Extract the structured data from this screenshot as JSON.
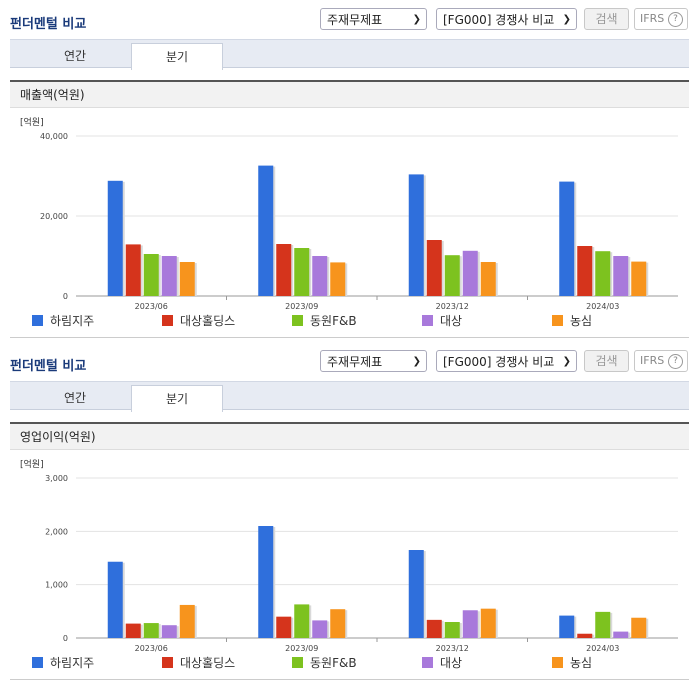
{
  "panels": [
    {
      "title": "펀더멘털 비교",
      "select1": "주재무제표",
      "select2": "[FG000] 경쟁사 비교",
      "search_label": "검색",
      "ifrs_label": "IFRS",
      "help_glyph": "?",
      "tabs": [
        "연간",
        "분기"
      ],
      "active_tab": "분기",
      "subheader": "매출액(억원)",
      "unit_label": "[억원]",
      "chart_data": {
        "type": "bar",
        "title": "매출액(억원)",
        "categories": [
          "2023/06",
          "2023/09",
          "2023/12",
          "2024/03"
        ],
        "ylim": [
          0,
          40000
        ],
        "yticks": [
          "0",
          "20,000",
          "40,000"
        ],
        "ytick_values": [
          0,
          20000,
          40000
        ],
        "grid": true,
        "legend_position": "bottom",
        "series": [
          {
            "name": "하림지주",
            "color": "#2f6fdc",
            "values": [
              28800,
              32600,
              30400,
              28600
            ]
          },
          {
            "name": "대상홀딩스",
            "color": "#d5341c",
            "values": [
              12900,
              13000,
              14000,
              12500
            ]
          },
          {
            "name": "동원F&B",
            "color": "#7dc21f",
            "values": [
              10500,
              12000,
              10200,
              11200
            ]
          },
          {
            "name": "대상",
            "color": "#a879db",
            "values": [
              10000,
              10000,
              11300,
              10000
            ]
          },
          {
            "name": "농심",
            "color": "#f7941d",
            "values": [
              8500,
              8400,
              8500,
              8600
            ]
          }
        ]
      }
    },
    {
      "title": "펀더멘털 비교",
      "select1": "주재무제표",
      "select2": "[FG000] 경쟁사 비교",
      "search_label": "검색",
      "ifrs_label": "IFRS",
      "help_glyph": "?",
      "tabs": [
        "연간",
        "분기"
      ],
      "active_tab": "분기",
      "subheader": "영업이익(억원)",
      "unit_label": "[억원]",
      "chart_data": {
        "type": "bar",
        "title": "영업이익(억원)",
        "categories": [
          "2023/06",
          "2023/09",
          "2023/12",
          "2024/03"
        ],
        "ylim": [
          0,
          3000
        ],
        "yticks": [
          "0",
          "1,000",
          "2,000",
          "3,000"
        ],
        "ytick_values": [
          0,
          1000,
          2000,
          3000
        ],
        "grid": true,
        "legend_position": "bottom",
        "series": [
          {
            "name": "하림지주",
            "color": "#2f6fdc",
            "values": [
              1430,
              2100,
              1650,
              420
            ]
          },
          {
            "name": "대상홀딩스",
            "color": "#d5341c",
            "values": [
              270,
              400,
              340,
              80
            ]
          },
          {
            "name": "동원F&B",
            "color": "#7dc21f",
            "values": [
              280,
              630,
              300,
              490
            ]
          },
          {
            "name": "대상",
            "color": "#a879db",
            "values": [
              240,
              330,
              520,
              120
            ]
          },
          {
            "name": "농심",
            "color": "#f7941d",
            "values": [
              620,
              540,
              550,
              380
            ]
          }
        ]
      }
    }
  ]
}
